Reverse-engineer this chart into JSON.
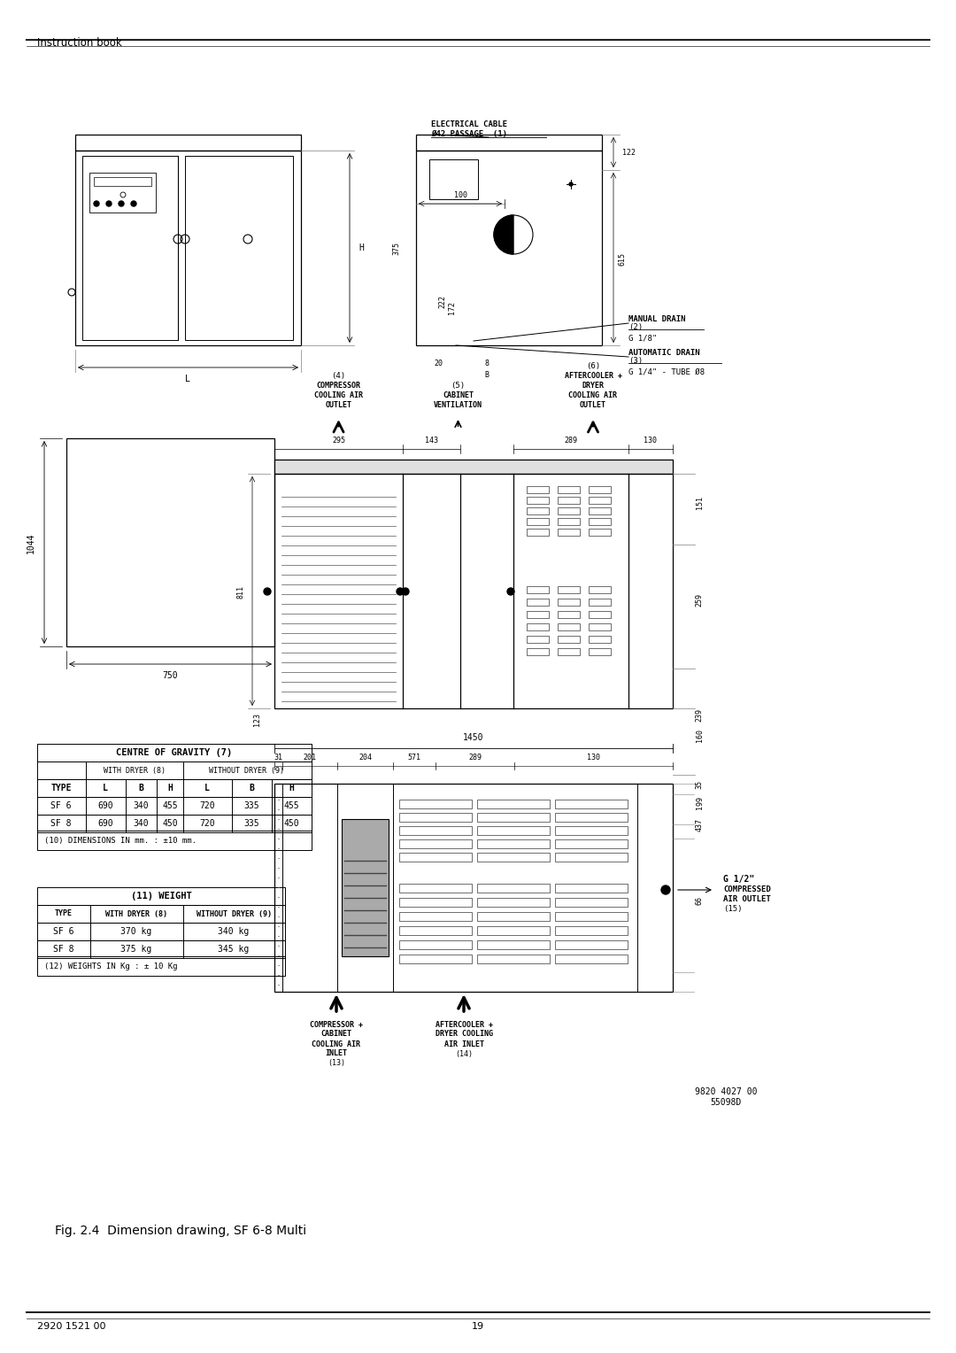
{
  "page_title_top": "Instruction book",
  "page_number": "19",
  "page_code": "2920 1521 00",
  "fig_caption": "Fig. 2.4  Dimension drawing, SF 6-8 Multi",
  "part_number_1": "9820 4027 00",
  "part_number_2": "55098D",
  "bg_color": "#ffffff",
  "table1_title": "CENTRE OF GRAVITY (7)",
  "table1_row1": [
    "SF 6",
    "690",
    "340",
    "455",
    "720",
    "335",
    "455"
  ],
  "table1_row2": [
    "SF 8",
    "690",
    "340",
    "450",
    "720",
    "335",
    "450"
  ],
  "table1_note": "(10) DIMENSIONS IN mm. : ±10 mm.",
  "table2_title": "(11) WEIGHT",
  "table2_row1": [
    "SF 6",
    "370 kg",
    "340 kg"
  ],
  "table2_row2": [
    "SF 8",
    "375 kg",
    "345 kg"
  ],
  "table2_note": "(12) WEIGHTS IN Kg : ± 10 Kg"
}
